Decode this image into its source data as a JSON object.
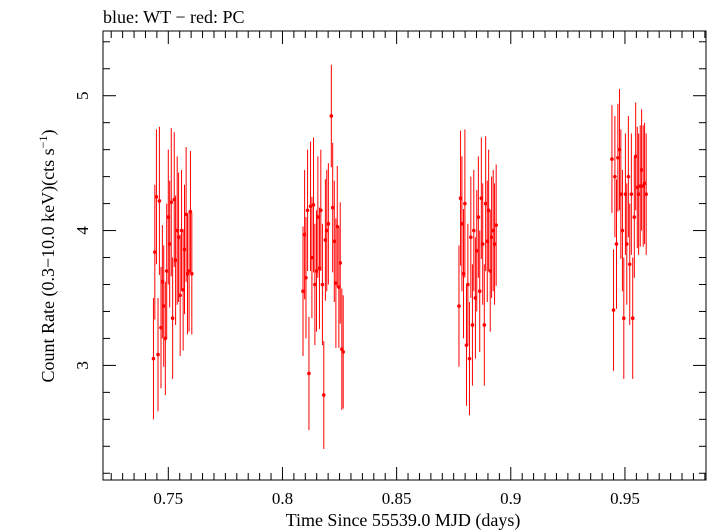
{
  "chart_data": {
    "type": "scatter",
    "title": "blue: WT − red: PC",
    "xlabel": "Time Since 55539.0 MJD (days)",
    "ylabel_main": "Count Rate (0.3−10.0 keV)(cts s",
    "ylabel_sup": "−1",
    "ylabel_end": ")",
    "xlim": [
      0.7214,
      0.9855
    ],
    "ylim": [
      2.15,
      5.48
    ],
    "x_ticks": [
      {
        "value": 0.75,
        "label": "0.75"
      },
      {
        "value": 0.8,
        "label": "0.8"
      },
      {
        "value": 0.85,
        "label": "0.85"
      },
      {
        "value": 0.9,
        "label": "0.9"
      },
      {
        "value": 0.95,
        "label": "0.95"
      }
    ],
    "y_ticks": [
      {
        "value": 3,
        "label": "3"
      },
      {
        "value": 4,
        "label": "4"
      },
      {
        "value": 5,
        "label": "5"
      }
    ],
    "grid": false,
    "series": [
      {
        "name": "PC",
        "color": "#ff0000",
        "points": [
          {
            "x": 0.7435,
            "y": 3.05,
            "err": 0.45
          },
          {
            "x": 0.7441,
            "y": 3.84,
            "err": 0.5
          },
          {
            "x": 0.7448,
            "y": 4.25,
            "err": 0.5
          },
          {
            "x": 0.7455,
            "y": 3.08,
            "err": 0.42
          },
          {
            "x": 0.7461,
            "y": 4.22,
            "err": 0.55
          },
          {
            "x": 0.7468,
            "y": 3.28,
            "err": 0.45
          },
          {
            "x": 0.7474,
            "y": 3.62,
            "err": 0.42
          },
          {
            "x": 0.748,
            "y": 3.44,
            "err": 0.45
          },
          {
            "x": 0.7487,
            "y": 3.2,
            "err": 0.42
          },
          {
            "x": 0.7493,
            "y": 3.7,
            "err": 0.5
          },
          {
            "x": 0.75,
            "y": 4.1,
            "err": 0.5
          },
          {
            "x": 0.7506,
            "y": 3.9,
            "err": 0.47
          },
          {
            "x": 0.7513,
            "y": 4.21,
            "err": 0.55
          },
          {
            "x": 0.7519,
            "y": 3.35,
            "err": 0.45
          },
          {
            "x": 0.7526,
            "y": 4.23,
            "err": 0.5
          },
          {
            "x": 0.7532,
            "y": 3.78,
            "err": 0.48
          },
          {
            "x": 0.7539,
            "y": 4.0,
            "err": 0.55
          },
          {
            "x": 0.7545,
            "y": 3.95,
            "err": 0.48
          },
          {
            "x": 0.7552,
            "y": 3.52,
            "err": 0.45
          },
          {
            "x": 0.7558,
            "y": 4.0,
            "err": 0.45
          },
          {
            "x": 0.7565,
            "y": 3.56,
            "err": 0.45
          },
          {
            "x": 0.7571,
            "y": 3.86,
            "err": 0.48
          },
          {
            "x": 0.7578,
            "y": 4.12,
            "err": 0.5
          },
          {
            "x": 0.7584,
            "y": 3.68,
            "err": 0.45
          },
          {
            "x": 0.7591,
            "y": 3.7,
            "err": 0.45
          },
          {
            "x": 0.7597,
            "y": 4.14,
            "err": 0.45
          },
          {
            "x": 0.7603,
            "y": 3.68,
            "err": 0.45
          },
          {
            "x": 0.809,
            "y": 3.55,
            "err": 0.48
          },
          {
            "x": 0.8097,
            "y": 3.97,
            "err": 0.48
          },
          {
            "x": 0.8103,
            "y": 3.65,
            "err": 0.45
          },
          {
            "x": 0.811,
            "y": 4.15,
            "err": 0.45
          },
          {
            "x": 0.8116,
            "y": 2.94,
            "err": 0.42
          },
          {
            "x": 0.8123,
            "y": 4.18,
            "err": 0.48
          },
          {
            "x": 0.8129,
            "y": 3.8,
            "err": 0.45
          },
          {
            "x": 0.8136,
            "y": 4.19,
            "err": 0.5
          },
          {
            "x": 0.8142,
            "y": 3.6,
            "err": 0.45
          },
          {
            "x": 0.8149,
            "y": 3.7,
            "err": 0.45
          },
          {
            "x": 0.8155,
            "y": 4.1,
            "err": 0.45
          },
          {
            "x": 0.8162,
            "y": 3.72,
            "err": 0.45
          },
          {
            "x": 0.8168,
            "y": 4.15,
            "err": 0.45
          },
          {
            "x": 0.8175,
            "y": 3.6,
            "err": 0.45
          },
          {
            "x": 0.8181,
            "y": 2.78,
            "err": 0.4
          },
          {
            "x": 0.8188,
            "y": 3.93,
            "err": 0.45
          },
          {
            "x": 0.8194,
            "y": 4.0,
            "err": 0.45
          },
          {
            "x": 0.8201,
            "y": 4.05,
            "err": 0.45
          },
          {
            "x": 0.8214,
            "y": 4.85,
            "err": 0.38
          },
          {
            "x": 0.822,
            "y": 4.17,
            "err": 0.48
          },
          {
            "x": 0.8227,
            "y": 3.92,
            "err": 0.45
          },
          {
            "x": 0.8234,
            "y": 3.61,
            "err": 0.48
          },
          {
            "x": 0.824,
            "y": 4.03,
            "err": 0.45
          },
          {
            "x": 0.8247,
            "y": 3.58,
            "err": 0.45
          },
          {
            "x": 0.8253,
            "y": 3.76,
            "err": 0.45
          },
          {
            "x": 0.826,
            "y": 3.12,
            "err": 0.45
          },
          {
            "x": 0.8266,
            "y": 3.1,
            "err": 0.42
          },
          {
            "x": 0.8773,
            "y": 3.44,
            "err": 0.45
          },
          {
            "x": 0.878,
            "y": 4.24,
            "err": 0.5
          },
          {
            "x": 0.8786,
            "y": 4.05,
            "err": 0.5
          },
          {
            "x": 0.8793,
            "y": 3.68,
            "err": 0.48
          },
          {
            "x": 0.8799,
            "y": 4.2,
            "err": 0.55
          },
          {
            "x": 0.8806,
            "y": 3.15,
            "err": 0.45
          },
          {
            "x": 0.8812,
            "y": 3.6,
            "err": 0.45
          },
          {
            "x": 0.8819,
            "y": 3.05,
            "err": 0.42
          },
          {
            "x": 0.8825,
            "y": 3.95,
            "err": 0.45
          },
          {
            "x": 0.8832,
            "y": 3.3,
            "err": 0.45
          },
          {
            "x": 0.8838,
            "y": 4.0,
            "err": 0.45
          },
          {
            "x": 0.8845,
            "y": 3.5,
            "err": 0.45
          },
          {
            "x": 0.8851,
            "y": 3.85,
            "err": 0.45
          },
          {
            "x": 0.8858,
            "y": 4.1,
            "err": 0.45
          },
          {
            "x": 0.8864,
            "y": 3.55,
            "err": 0.45
          },
          {
            "x": 0.8871,
            "y": 4.24,
            "err": 0.45
          },
          {
            "x": 0.8877,
            "y": 3.9,
            "err": 0.45
          },
          {
            "x": 0.8884,
            "y": 3.3,
            "err": 0.45
          },
          {
            "x": 0.889,
            "y": 4.2,
            "err": 0.5
          },
          {
            "x": 0.8897,
            "y": 3.92,
            "err": 0.45
          },
          {
            "x": 0.8903,
            "y": 4.15,
            "err": 0.45
          },
          {
            "x": 0.891,
            "y": 3.7,
            "err": 0.45
          },
          {
            "x": 0.8916,
            "y": 3.95,
            "err": 0.45
          },
          {
            "x": 0.8923,
            "y": 4.0,
            "err": 0.45
          },
          {
            "x": 0.8929,
            "y": 3.9,
            "err": 0.45
          },
          {
            "x": 0.8936,
            "y": 4.04,
            "err": 0.45
          },
          {
            "x": 0.9443,
            "y": 4.53,
            "err": 0.4
          },
          {
            "x": 0.945,
            "y": 3.41,
            "err": 0.45
          },
          {
            "x": 0.9456,
            "y": 4.4,
            "err": 0.45
          },
          {
            "x": 0.9463,
            "y": 3.9,
            "err": 0.48
          },
          {
            "x": 0.9469,
            "y": 4.54,
            "err": 0.4
          },
          {
            "x": 0.9476,
            "y": 4.6,
            "err": 0.45
          },
          {
            "x": 0.9482,
            "y": 4.27,
            "err": 0.48
          },
          {
            "x": 0.9489,
            "y": 4.0,
            "err": 0.45
          },
          {
            "x": 0.9495,
            "y": 3.35,
            "err": 0.45
          },
          {
            "x": 0.9502,
            "y": 4.27,
            "err": 0.45
          },
          {
            "x": 0.9508,
            "y": 3.9,
            "err": 0.45
          },
          {
            "x": 0.9515,
            "y": 4.4,
            "err": 0.45
          },
          {
            "x": 0.9521,
            "y": 3.75,
            "err": 0.45
          },
          {
            "x": 0.9528,
            "y": 4.27,
            "err": 0.45
          },
          {
            "x": 0.9534,
            "y": 3.35,
            "err": 0.45
          },
          {
            "x": 0.9541,
            "y": 4.1,
            "err": 0.45
          },
          {
            "x": 0.9547,
            "y": 4.55,
            "err": 0.4
          },
          {
            "x": 0.9554,
            "y": 4.32,
            "err": 0.45
          },
          {
            "x": 0.956,
            "y": 4.27,
            "err": 0.45
          },
          {
            "x": 0.9567,
            "y": 4.33,
            "err": 0.45
          },
          {
            "x": 0.9573,
            "y": 4.45,
            "err": 0.45
          },
          {
            "x": 0.958,
            "y": 4.33,
            "err": 0.45
          },
          {
            "x": 0.9586,
            "y": 4.35,
            "err": 0.45
          },
          {
            "x": 0.9593,
            "y": 4.27,
            "err": 0.45
          }
        ]
      }
    ]
  }
}
